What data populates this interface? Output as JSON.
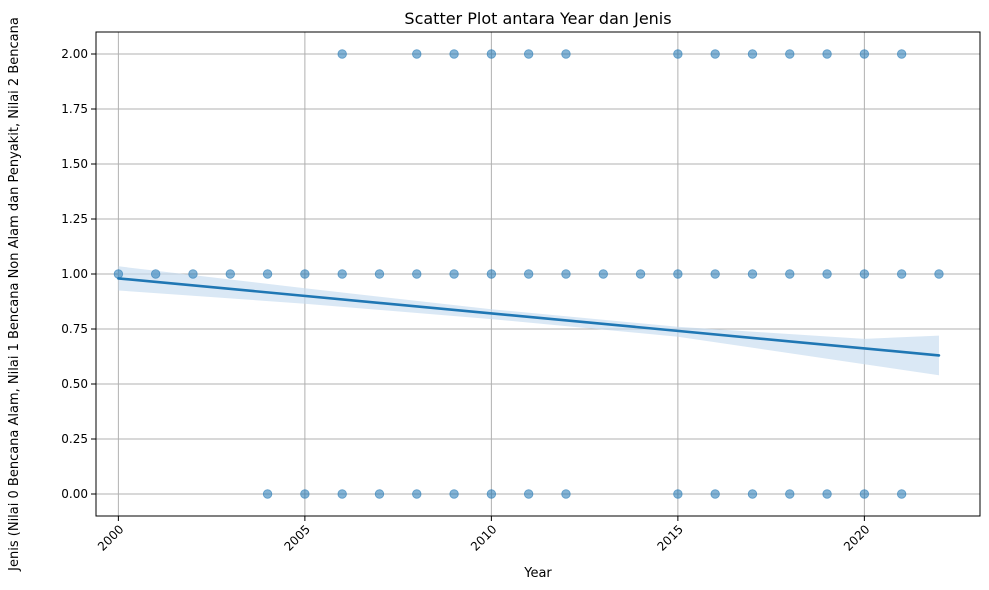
{
  "chart_data": {
    "type": "scatter",
    "title": "Scatter Plot antara Year dan Jenis",
    "xlabel": "Year",
    "ylabel": "Jenis (Nilai 0 Bencana Alam, Nilai 1 Bencana Non Alam dan Penyakit, Nilai 2 Bencana",
    "xlim": [
      1999.4,
      2023.1
    ],
    "ylim": [
      -0.1,
      2.1
    ],
    "xticks": [
      2000,
      2005,
      2010,
      2015,
      2020
    ],
    "xtick_labels": [
      "2000",
      "2005",
      "2010",
      "2015",
      "2020"
    ],
    "yticks": [
      0.0,
      0.25,
      0.5,
      0.75,
      1.0,
      1.25,
      1.5,
      1.75,
      2.0
    ],
    "ytick_labels": [
      "0.00",
      "0.25",
      "0.50",
      "0.75",
      "1.00",
      "1.25",
      "1.50",
      "1.75",
      "2.00"
    ],
    "grid": true,
    "point_color": "#1f77b4",
    "points": [
      {
        "x": 2006,
        "y": 2
      },
      {
        "x": 2008,
        "y": 2
      },
      {
        "x": 2009,
        "y": 2
      },
      {
        "x": 2010,
        "y": 2
      },
      {
        "x": 2011,
        "y": 2
      },
      {
        "x": 2012,
        "y": 2
      },
      {
        "x": 2015,
        "y": 2
      },
      {
        "x": 2016,
        "y": 2
      },
      {
        "x": 2017,
        "y": 2
      },
      {
        "x": 2018,
        "y": 2
      },
      {
        "x": 2019,
        "y": 2
      },
      {
        "x": 2020,
        "y": 2
      },
      {
        "x": 2021,
        "y": 2
      },
      {
        "x": 2000,
        "y": 1
      },
      {
        "x": 2001,
        "y": 1
      },
      {
        "x": 2002,
        "y": 1
      },
      {
        "x": 2003,
        "y": 1
      },
      {
        "x": 2004,
        "y": 1
      },
      {
        "x": 2005,
        "y": 1
      },
      {
        "x": 2006,
        "y": 1
      },
      {
        "x": 2007,
        "y": 1
      },
      {
        "x": 2008,
        "y": 1
      },
      {
        "x": 2009,
        "y": 1
      },
      {
        "x": 2010,
        "y": 1
      },
      {
        "x": 2011,
        "y": 1
      },
      {
        "x": 2012,
        "y": 1
      },
      {
        "x": 2013,
        "y": 1
      },
      {
        "x": 2014,
        "y": 1
      },
      {
        "x": 2015,
        "y": 1
      },
      {
        "x": 2016,
        "y": 1
      },
      {
        "x": 2017,
        "y": 1
      },
      {
        "x": 2018,
        "y": 1
      },
      {
        "x": 2019,
        "y": 1
      },
      {
        "x": 2020,
        "y": 1
      },
      {
        "x": 2021,
        "y": 1
      },
      {
        "x": 2022,
        "y": 1
      },
      {
        "x": 2004,
        "y": 0
      },
      {
        "x": 2005,
        "y": 0
      },
      {
        "x": 2006,
        "y": 0
      },
      {
        "x": 2007,
        "y": 0
      },
      {
        "x": 2008,
        "y": 0
      },
      {
        "x": 2009,
        "y": 0
      },
      {
        "x": 2010,
        "y": 0
      },
      {
        "x": 2011,
        "y": 0
      },
      {
        "x": 2012,
        "y": 0
      },
      {
        "x": 2015,
        "y": 0
      },
      {
        "x": 2016,
        "y": 0
      },
      {
        "x": 2017,
        "y": 0
      },
      {
        "x": 2018,
        "y": 0
      },
      {
        "x": 2019,
        "y": 0
      },
      {
        "x": 2020,
        "y": 0
      },
      {
        "x": 2021,
        "y": 0
      }
    ],
    "regression_line": {
      "x": [
        2000,
        2022
      ],
      "y": [
        0.98,
        0.63
      ],
      "color": "#1f77b4"
    },
    "confidence_band": {
      "x": [
        2000,
        2005,
        2010,
        2015,
        2020,
        2022
      ],
      "upper": [
        1.035,
        0.935,
        0.84,
        0.76,
        0.705,
        0.72
      ],
      "lower": [
        0.925,
        0.865,
        0.795,
        0.715,
        0.59,
        0.54
      ],
      "color": "#c6dbef"
    }
  }
}
